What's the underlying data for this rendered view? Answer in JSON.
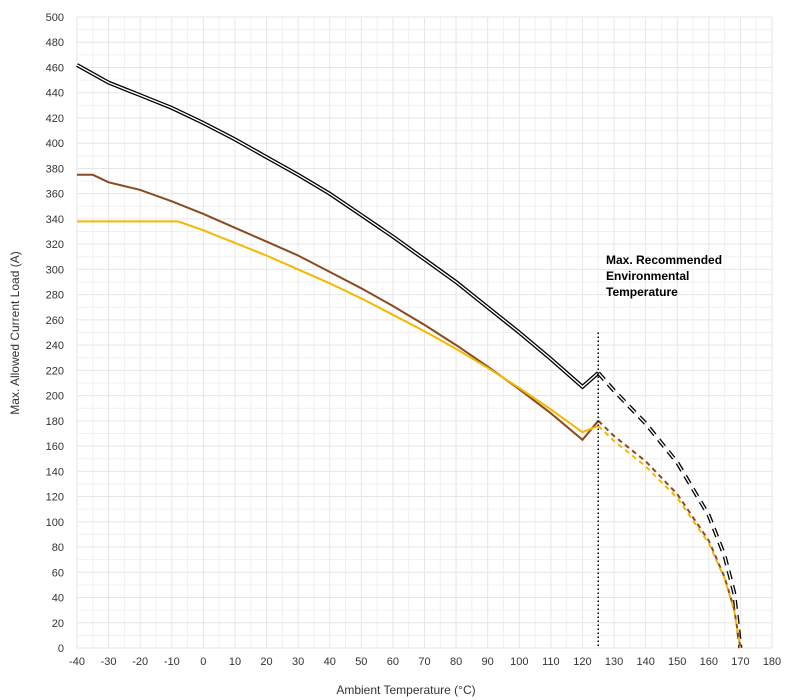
{
  "chart_data": {
    "type": "line",
    "title": "",
    "xlabel": "Ambient Temperature (°C)",
    "ylabel": "Max. Allowed Current Load (A)",
    "xlim": [
      -40,
      180
    ],
    "ylim": [
      0,
      500
    ],
    "x_ticks": [
      -40,
      -30,
      -20,
      -10,
      0,
      10,
      20,
      30,
      40,
      50,
      60,
      70,
      80,
      90,
      100,
      110,
      120,
      130,
      140,
      150,
      160,
      170,
      180
    ],
    "y_ticks": [
      0,
      20,
      40,
      60,
      80,
      100,
      120,
      140,
      160,
      180,
      200,
      220,
      240,
      260,
      280,
      300,
      320,
      340,
      360,
      380,
      400,
      420,
      440,
      460,
      480,
      500
    ],
    "x_minor_step": 5,
    "y_minor_step": 10,
    "grid": true,
    "legend": "none",
    "colors": {
      "grid": "#e6e6e6",
      "axis_text": "#333333"
    },
    "series": [
      {
        "color": "#000000",
        "style": "double",
        "solid": [
          [
            -40,
            462
          ],
          [
            -30,
            448
          ],
          [
            -20,
            438
          ],
          [
            -10,
            428
          ],
          [
            0,
            416
          ],
          [
            10,
            403
          ],
          [
            20,
            389
          ],
          [
            30,
            375
          ],
          [
            40,
            360
          ],
          [
            50,
            343
          ],
          [
            60,
            326
          ],
          [
            70,
            308
          ],
          [
            80,
            290
          ],
          [
            90,
            270
          ],
          [
            100,
            250
          ],
          [
            110,
            229
          ],
          [
            120,
            207
          ],
          [
            125,
            218
          ]
        ],
        "dashed": [
          [
            125,
            218
          ],
          [
            130,
            204
          ],
          [
            140,
            178
          ],
          [
            150,
            147
          ],
          [
            160,
            105
          ],
          [
            165,
            73
          ],
          [
            168,
            44
          ],
          [
            170,
            0
          ]
        ]
      },
      {
        "color": "#8b4a1e",
        "style": "single",
        "solid": [
          [
            -40,
            375
          ],
          [
            -35,
            375
          ],
          [
            -30,
            369
          ],
          [
            -20,
            363
          ],
          [
            -10,
            354
          ],
          [
            0,
            344
          ],
          [
            10,
            333
          ],
          [
            20,
            322
          ],
          [
            30,
            311
          ],
          [
            40,
            298
          ],
          [
            50,
            285
          ],
          [
            60,
            271
          ],
          [
            70,
            256
          ],
          [
            80,
            240
          ],
          [
            90,
            223
          ],
          [
            100,
            205
          ],
          [
            110,
            186
          ],
          [
            120,
            165
          ],
          [
            125,
            180
          ]
        ],
        "dashed": [
          [
            125,
            180
          ],
          [
            130,
            168
          ],
          [
            140,
            148
          ],
          [
            150,
            122
          ],
          [
            160,
            85
          ],
          [
            165,
            56
          ],
          [
            168,
            31
          ],
          [
            170,
            0
          ]
        ]
      },
      {
        "color": "#f5b800",
        "style": "single",
        "solid": [
          [
            -40,
            338
          ],
          [
            -8,
            338
          ],
          [
            0,
            331
          ],
          [
            10,
            321
          ],
          [
            20,
            311
          ],
          [
            30,
            300
          ],
          [
            40,
            289
          ],
          [
            50,
            277
          ],
          [
            60,
            264
          ],
          [
            70,
            251
          ],
          [
            80,
            237
          ],
          [
            90,
            222
          ],
          [
            100,
            206
          ],
          [
            110,
            189
          ],
          [
            120,
            171
          ],
          [
            125,
            176
          ]
        ],
        "dashed": [
          [
            125,
            176
          ],
          [
            130,
            164
          ],
          [
            140,
            144
          ],
          [
            150,
            119
          ],
          [
            160,
            83
          ],
          [
            165,
            55
          ],
          [
            168,
            30
          ],
          [
            170,
            0
          ]
        ]
      }
    ],
    "marker_line": {
      "x": 125,
      "y_top": 250
    },
    "annotation": {
      "lines": [
        "Max. Recommended",
        "Environmental",
        "Temperature"
      ]
    }
  }
}
